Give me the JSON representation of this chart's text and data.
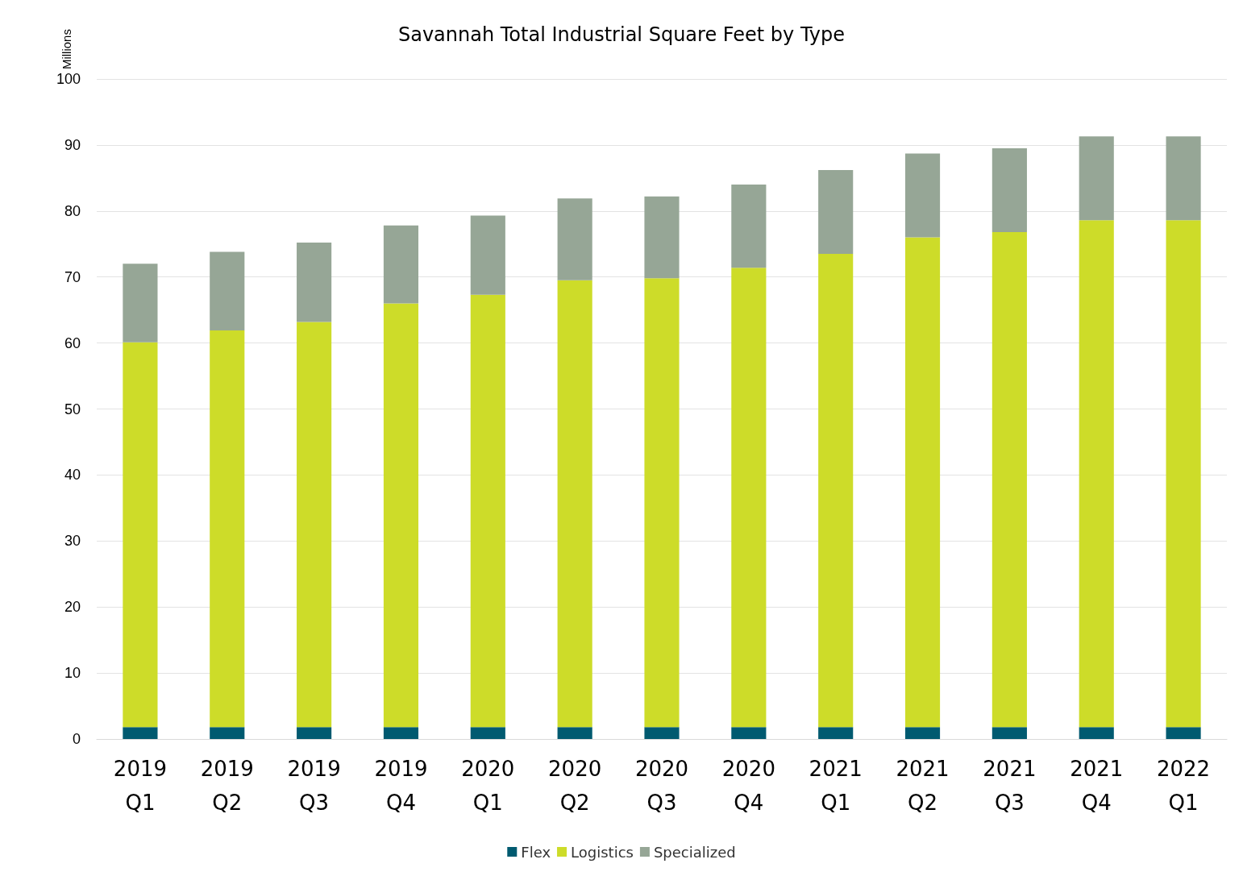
{
  "chart_data": {
    "type": "bar",
    "title": "Savannah Total Industrial Square Feet by Type",
    "ylabel": "Millions",
    "categories": [
      "2019\nQ1",
      "2019\nQ2",
      "2019\nQ3",
      "2019\nQ4",
      "2020\nQ1",
      "2020\nQ2",
      "2020\nQ3",
      "2020\nQ4",
      "2021\nQ1",
      "2021\nQ2",
      "2021\nQ3",
      "2021\nQ4",
      "2022\nQ1"
    ],
    "stacked": true,
    "series": [
      {
        "name": "Flex",
        "color": "#005a70",
        "values": [
          1.8,
          1.8,
          1.8,
          1.8,
          1.8,
          1.8,
          1.8,
          1.8,
          1.8,
          1.8,
          1.8,
          1.8,
          1.8
        ]
      },
      {
        "name": "Logistics",
        "color": "#cddc29",
        "values": [
          58.3,
          60.1,
          61.4,
          64.2,
          65.5,
          67.7,
          68.0,
          69.6,
          71.7,
          74.2,
          75.0,
          76.8,
          76.8
        ]
      },
      {
        "name": "Specialized",
        "color": "#96a696",
        "values": [
          11.9,
          11.9,
          12.0,
          11.8,
          12.0,
          12.4,
          12.4,
          12.6,
          12.7,
          12.7,
          12.7,
          12.7,
          12.7
        ]
      }
    ],
    "ylim": [
      0,
      100
    ],
    "yticks": [
      0,
      10,
      20,
      30,
      40,
      50,
      60,
      70,
      80,
      90,
      100
    ],
    "grid": "y",
    "legend": "bottom"
  }
}
